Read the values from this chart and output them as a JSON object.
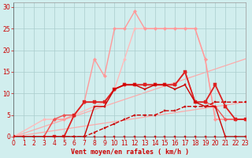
{
  "background_color": "#d1eeee",
  "grid_color": "#aacccc",
  "xlabel": "Vent moyen/en rafales ( km/h )",
  "xlabel_color": "#cc0000",
  "xlim": [
    0,
    23
  ],
  "ylim": [
    0,
    31
  ],
  "xticks": [
    0,
    1,
    2,
    3,
    4,
    5,
    6,
    7,
    8,
    9,
    10,
    11,
    12,
    13,
    14,
    15,
    16,
    17,
    18,
    19,
    20,
    21,
    22,
    23
  ],
  "yticks": [
    0,
    5,
    10,
    15,
    20,
    25,
    30
  ],
  "tick_color": "#cc0000",
  "tick_fontsize": 5.5,
  "lines": [
    {
      "x": [
        0,
        1,
        2,
        3,
        4,
        5,
        6,
        7,
        8,
        9,
        10,
        11,
        12,
        13,
        14,
        15,
        16,
        17,
        18,
        19,
        20,
        21,
        22,
        23
      ],
      "y": [
        0,
        0,
        0,
        0,
        0,
        0,
        0,
        0,
        0,
        0,
        0,
        0,
        0,
        0,
        0,
        0,
        0,
        0,
        0,
        0,
        0,
        0,
        0,
        0
      ],
      "color": "#cc0000",
      "lw": 0.9,
      "marker": "s",
      "ms": 1.8,
      "zorder": 10
    },
    {
      "x": [
        0,
        1,
        2,
        3,
        4,
        5,
        6,
        7,
        8,
        9,
        10,
        11,
        12,
        13,
        14,
        15,
        16,
        17,
        18,
        19,
        20,
        21,
        22,
        23
      ],
      "y": [
        0,
        0,
        0,
        0,
        0,
        0,
        0,
        0,
        7,
        7,
        11,
        12,
        12,
        11,
        12,
        12,
        11,
        12,
        8,
        7,
        7,
        0,
        0,
        0
      ],
      "color": "#cc0000",
      "lw": 1.0,
      "marker": "s",
      "ms": 2.0,
      "zorder": 9
    },
    {
      "x": [
        0,
        4,
        5,
        6,
        7,
        8,
        9,
        10,
        11,
        12,
        13,
        14,
        15,
        16,
        17,
        18,
        19,
        20,
        21,
        22,
        23
      ],
      "y": [
        0,
        0,
        0,
        5,
        8,
        8,
        8,
        11,
        12,
        12,
        12,
        12,
        12,
        12,
        15,
        8,
        8,
        12,
        7,
        4,
        4
      ],
      "color": "#dd2222",
      "lw": 1.3,
      "marker": "s",
      "ms": 2.5,
      "zorder": 8
    },
    {
      "x": [
        0,
        1,
        2,
        3,
        4,
        5,
        6,
        7,
        8,
        9,
        10,
        11,
        12,
        13,
        14,
        15,
        16,
        17,
        18,
        19,
        20,
        21,
        22,
        23
      ],
      "y": [
        0,
        0,
        0,
        0,
        0,
        0,
        0,
        0,
        1,
        2,
        3,
        4,
        5,
        5,
        5,
        6,
        6,
        7,
        7,
        7,
        8,
        8,
        8,
        8
      ],
      "color": "#cc0000",
      "lw": 1.0,
      "marker": "s",
      "ms": 1.5,
      "ls": "--",
      "zorder": 7
    },
    {
      "x": [
        0,
        3,
        4,
        5,
        6,
        7,
        8,
        9,
        10,
        11,
        12,
        13,
        14,
        15,
        16,
        17,
        18,
        19,
        20,
        21,
        22,
        23
      ],
      "y": [
        0,
        0,
        4,
        5,
        5,
        8,
        8,
        8,
        11,
        12,
        12,
        12,
        12,
        12,
        12,
        15,
        8,
        8,
        7,
        4,
        4,
        4
      ],
      "color": "#ee5555",
      "lw": 1.0,
      "marker": "D",
      "ms": 2.2,
      "zorder": 6
    },
    {
      "x": [
        0,
        23
      ],
      "y": [
        0,
        18
      ],
      "color": "#ffaaaa",
      "lw": 0.9,
      "marker": null,
      "ms": 0,
      "zorder": 1
    },
    {
      "x": [
        0,
        23
      ],
      "y": [
        0,
        8
      ],
      "color": "#ffaaaa",
      "lw": 0.9,
      "marker": null,
      "ms": 0,
      "zorder": 1
    },
    {
      "x": [
        0,
        3,
        4,
        5,
        6,
        7,
        8,
        9,
        10,
        11,
        12,
        13,
        14,
        15,
        16,
        17,
        18,
        19,
        20,
        21,
        22,
        23
      ],
      "y": [
        0,
        0,
        4,
        4,
        5,
        8,
        18,
        14,
        25,
        25,
        29,
        25,
        25,
        25,
        25,
        25,
        25,
        18,
        4,
        4,
        4,
        4
      ],
      "color": "#ff9999",
      "lw": 1.0,
      "marker": "D",
      "ms": 2.2,
      "zorder": 4
    },
    {
      "x": [
        0,
        3,
        4,
        5,
        6,
        9,
        10,
        11,
        12,
        13,
        14,
        15,
        16,
        17,
        18,
        19,
        20,
        21,
        22,
        23
      ],
      "y": [
        0,
        4,
        4,
        4,
        5,
        8,
        11,
        18,
        25,
        25,
        25,
        25,
        25,
        25,
        25,
        18,
        4,
        4,
        4,
        4
      ],
      "color": "#ffbbbb",
      "lw": 1.0,
      "marker": "D",
      "ms": 2.0,
      "zorder": 3
    }
  ]
}
